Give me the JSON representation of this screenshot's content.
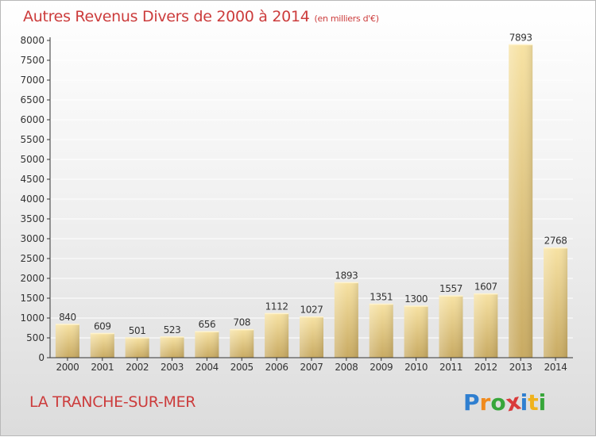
{
  "header": {
    "title": "Autres Revenus Divers de 2000 à 2014",
    "subtitle": "(en milliers d'€)"
  },
  "footer": {
    "place": "LA TRANCHE-SUR-MER",
    "brand": [
      "P",
      "r",
      "o",
      "x",
      "i",
      "t",
      "i"
    ],
    "brand_colors": [
      "#2f7fd0",
      "#f08a1c",
      "#37a63a",
      "#d93a3a",
      "#2f7fd0",
      "#f0b21c",
      "#37a63a"
    ]
  },
  "colors": {
    "bar_light": "#f7e2a3",
    "bar_dark": "#c8aa62",
    "axis": "#333333",
    "grid": "#ffffff"
  },
  "chart_data": {
    "type": "bar",
    "title": "Autres Revenus Divers de 2000 à 2014",
    "categories": [
      "2000",
      "2001",
      "2002",
      "2003",
      "2004",
      "2005",
      "2006",
      "2007",
      "2008",
      "2009",
      "2010",
      "2011",
      "2012",
      "2013",
      "2014"
    ],
    "values": [
      840,
      609,
      501,
      523,
      656,
      708,
      1112,
      1027,
      1893,
      1351,
      1300,
      1557,
      1607,
      7893,
      2768
    ],
    "ylim": [
      0,
      8000
    ],
    "yticks": [
      0,
      500,
      1000,
      1500,
      2000,
      2500,
      3000,
      3500,
      4000,
      4500,
      5000,
      5500,
      6000,
      6500,
      7000,
      7500,
      8000
    ],
    "xlabel": "",
    "ylabel": "",
    "grid": true
  }
}
